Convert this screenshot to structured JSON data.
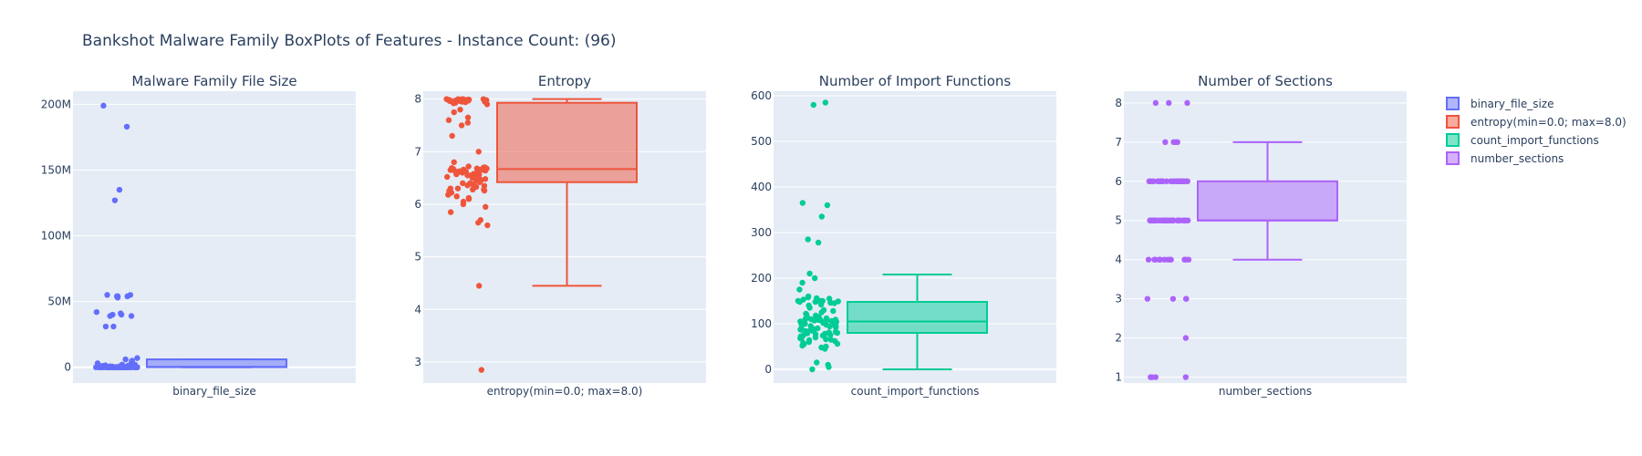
{
  "title": "Bankshot Malware Family BoxPlots of Features - Instance Count: (96)",
  "colors": {
    "plot_background": "#e5ecf6",
    "grid": "#ffffff",
    "text": "#2a3f5f"
  },
  "chart_data": [
    {
      "type": "box",
      "title": "Malware Family File Size",
      "category": "binary_file_size",
      "color": "#636efa",
      "ylim": [
        -12000000,
        210000000
      ],
      "yticks": [
        0,
        50000000,
        100000000,
        150000000,
        200000000
      ],
      "ytick_labels": [
        "0",
        "50M",
        "100M",
        "150M",
        "200M"
      ],
      "box": {
        "lower_fence": 0,
        "q1": 100000,
        "median": 300000,
        "q3": 6000000,
        "upper_fence": 6000000
      },
      "points": [
        199000000,
        183000000,
        135000000,
        127000000,
        55000000,
        55000000,
        54000000,
        54000000,
        54000000,
        53000000,
        42000000,
        41000000,
        40000000,
        40000000,
        39000000,
        39000000,
        31000000,
        31000000,
        7000000,
        6000000,
        5000000,
        4000000,
        3000000,
        2000000,
        2000000,
        1500000,
        1200000,
        1000000,
        900000,
        800000,
        700000,
        600000,
        500000,
        500000,
        400000,
        400000,
        300000,
        300000,
        300000,
        200000,
        200000,
        200000,
        200000,
        150000,
        150000,
        150000,
        100000,
        100000,
        100000,
        100000,
        100000,
        80000,
        80000,
        80000,
        60000,
        60000,
        50000,
        50000,
        40000,
        40000,
        30000,
        30000,
        20000,
        20000,
        20000,
        10000,
        10000,
        10000,
        10000,
        5000,
        5000,
        5000,
        5000,
        0,
        0,
        0,
        0,
        0,
        0,
        0,
        0,
        0,
        0,
        0,
        0,
        0,
        0,
        0,
        0,
        0,
        0,
        0,
        0,
        0,
        0,
        0
      ]
    },
    {
      "type": "box",
      "title": "Entropy",
      "category": "entropy(min=0.0; max=8.0)",
      "color": "#ef553b",
      "ylim": [
        2.6,
        8.15
      ],
      "yticks": [
        3,
        4,
        5,
        6,
        7,
        8
      ],
      "ytick_labels": [
        "3",
        "4",
        "5",
        "6",
        "7",
        "8"
      ],
      "box": {
        "lower_fence": 4.45,
        "q1": 6.42,
        "median": 6.67,
        "q3": 7.93,
        "upper_fence": 8.0
      },
      "points": [
        8.0,
        8.0,
        8.0,
        8.0,
        8.0,
        8.0,
        7.99,
        7.99,
        7.99,
        7.99,
        7.98,
        7.98,
        7.98,
        7.98,
        7.97,
        7.97,
        7.97,
        7.96,
        7.96,
        7.95,
        7.95,
        7.94,
        7.93,
        7.92,
        7.9,
        7.8,
        7.75,
        7.65,
        7.6,
        7.55,
        7.5,
        7.3,
        7.0,
        6.8,
        6.72,
        6.7,
        6.7,
        6.69,
        6.68,
        6.68,
        6.67,
        6.67,
        6.66,
        6.66,
        6.65,
        6.65,
        6.64,
        6.63,
        6.62,
        6.62,
        6.61,
        6.6,
        6.6,
        6.58,
        6.57,
        6.56,
        6.55,
        6.54,
        6.53,
        6.52,
        6.5,
        6.5,
        6.48,
        6.46,
        6.45,
        6.44,
        6.42,
        6.4,
        6.4,
        6.38,
        6.36,
        6.35,
        6.33,
        6.3,
        6.3,
        6.28,
        6.28,
        6.26,
        6.25,
        6.22,
        6.2,
        6.18,
        6.15,
        6.12,
        6.1,
        6.05,
        6.0,
        5.95,
        5.85,
        5.7,
        5.65,
        5.6,
        4.45,
        2.85,
        6.55,
        6.6
      ]
    },
    {
      "type": "box",
      "title": "Number of Import Functions",
      "category": "count_import_functions",
      "color": "#00cc96",
      "ylim": [
        -30,
        610
      ],
      "yticks": [
        0,
        100,
        200,
        300,
        400,
        500,
        600
      ],
      "ytick_labels": [
        "0",
        "100",
        "200",
        "300",
        "400",
        "500",
        "600"
      ],
      "box": {
        "lower_fence": 0,
        "q1": 80,
        "median": 105,
        "q3": 148,
        "upper_fence": 208
      },
      "points": [
        585,
        580,
        365,
        360,
        335,
        285,
        278,
        210,
        200,
        190,
        175,
        160,
        158,
        156,
        155,
        153,
        150,
        150,
        150,
        149,
        148,
        148,
        147,
        146,
        145,
        142,
        140,
        135,
        130,
        128,
        125,
        122,
        120,
        118,
        115,
        113,
        112,
        110,
        110,
        109,
        108,
        108,
        107,
        106,
        105,
        105,
        104,
        103,
        102,
        101,
        100,
        99,
        98,
        97,
        96,
        95,
        94,
        92,
        90,
        90,
        88,
        87,
        86,
        85,
        84,
        82,
        81,
        80,
        79,
        78,
        77,
        76,
        75,
        74,
        72,
        70,
        70,
        68,
        66,
        65,
        64,
        62,
        60,
        58,
        56,
        55,
        52,
        50,
        48,
        45,
        15,
        10,
        5,
        0,
        110,
        100
      ]
    },
    {
      "type": "box",
      "title": "Number of Sections",
      "category": "number_sections",
      "color": "#ab63fa",
      "ylim": [
        0.85,
        8.3
      ],
      "yticks": [
        1,
        2,
        3,
        4,
        5,
        6,
        7,
        8
      ],
      "ytick_labels": [
        "1",
        "2",
        "3",
        "4",
        "5",
        "6",
        "7",
        "8"
      ],
      "box": {
        "lower_fence": 4,
        "q1": 5,
        "median": 5,
        "q3": 6,
        "upper_fence": 7
      },
      "points": [
        8,
        8,
        8,
        7,
        7,
        7,
        7,
        6,
        6,
        6,
        6,
        6,
        6,
        6,
        6,
        6,
        6,
        6,
        6,
        6,
        6,
        6,
        6,
        6,
        6,
        6,
        6,
        6,
        6,
        6,
        6,
        6,
        6,
        6,
        6,
        6,
        6,
        6,
        6,
        5,
        5,
        5,
        5,
        5,
        5,
        5,
        5,
        5,
        5,
        5,
        5,
        5,
        5,
        5,
        5,
        5,
        5,
        5,
        5,
        5,
        5,
        5,
        5,
        5,
        5,
        5,
        5,
        5,
        5,
        5,
        5,
        5,
        5,
        5,
        4,
        4,
        4,
        4,
        4,
        4,
        4,
        4,
        4,
        4,
        4,
        4,
        3,
        3,
        3,
        3,
        2,
        1,
        1,
        1,
        1,
        5
      ]
    }
  ],
  "legend": {
    "placement": "top-right",
    "items": [
      {
        "label": "binary_file_size",
        "color": "#636efa"
      },
      {
        "label": "entropy(min=0.0; max=8.0)",
        "color": "#ef553b"
      },
      {
        "label": "count_import_functions",
        "color": "#00cc96"
      },
      {
        "label": "number_sections",
        "color": "#ab63fa"
      }
    ]
  }
}
